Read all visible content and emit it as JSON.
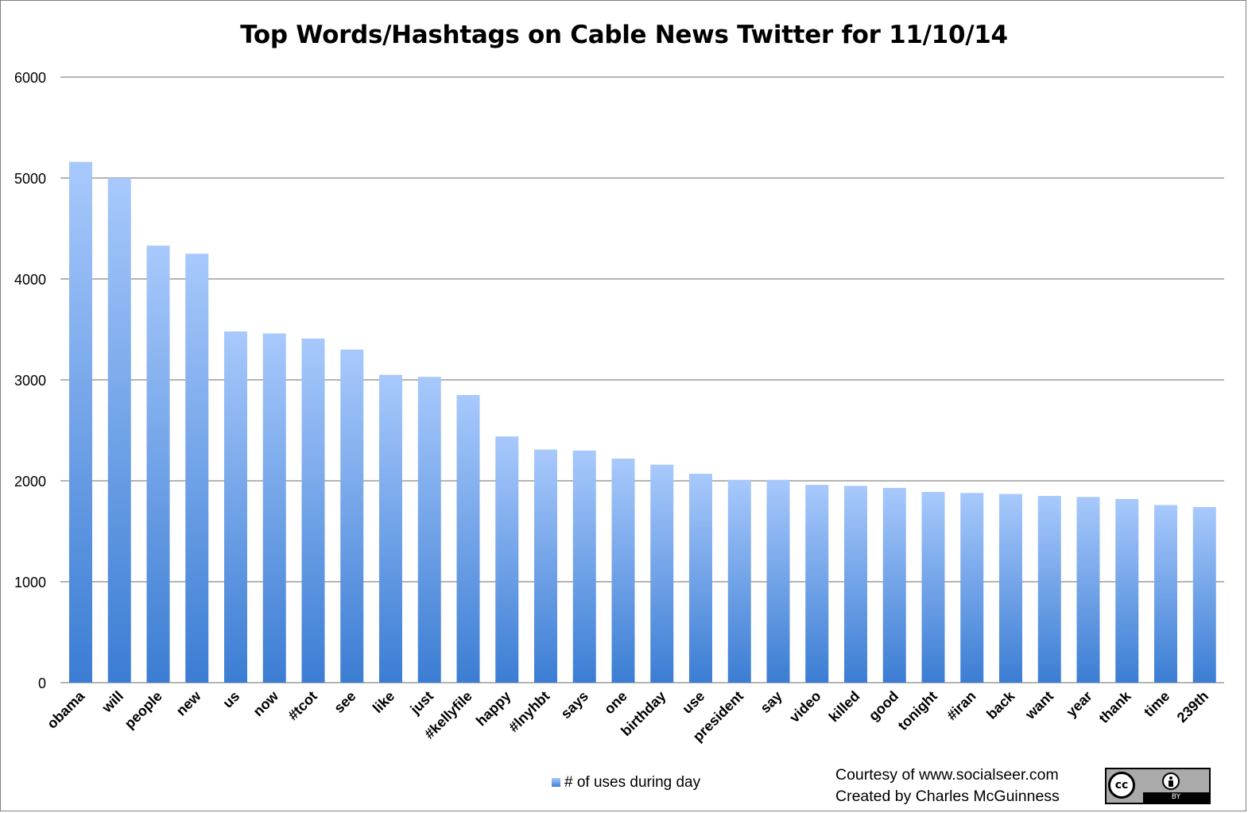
{
  "chart_data": {
    "type": "bar",
    "title": "Top Words/Hashtags on Cable News Twitter for 11/10/14",
    "xlabel": "",
    "ylabel": "",
    "ylim": [
      0,
      6000
    ],
    "yticks": [
      "0",
      "1000",
      "2000",
      "3000",
      "4000",
      "5000",
      "6000"
    ],
    "grid": true,
    "legend_position": "bottom",
    "categories": [
      "obama",
      "will",
      "people",
      "new",
      "us",
      "now",
      "#tcot",
      "see",
      "like",
      "just",
      "#kellyfile",
      "happy",
      "#lnyhbt",
      "says",
      "one",
      "birthday",
      "use",
      "president",
      "say",
      "video",
      "killed",
      "good",
      "tonight",
      "#iran",
      "back",
      "want",
      "year",
      "thank",
      "time",
      "239th"
    ],
    "series": [
      {
        "name": "# of uses during day",
        "values": [
          5160,
          5000,
          4330,
          4250,
          3480,
          3460,
          3410,
          3300,
          3050,
          3030,
          2850,
          2440,
          2310,
          2300,
          2220,
          2160,
          2070,
          2010,
          2010,
          1960,
          1950,
          1930,
          1890,
          1880,
          1870,
          1850,
          1840,
          1820,
          1760,
          1740
        ]
      }
    ],
    "colors": {
      "bar_top": "#a8c9fc",
      "bar_bottom": "#3b7dd3",
      "grid": "#888888"
    }
  },
  "legend": {
    "label": "# of uses during day"
  },
  "credit": {
    "line1": "Courtesy of www.socialseer.com",
    "line2": "Created by Charles McGuinness"
  },
  "badge": {
    "cc_text": "cc",
    "by_text": "BY",
    "icon": "creative-commons-by-icon"
  }
}
